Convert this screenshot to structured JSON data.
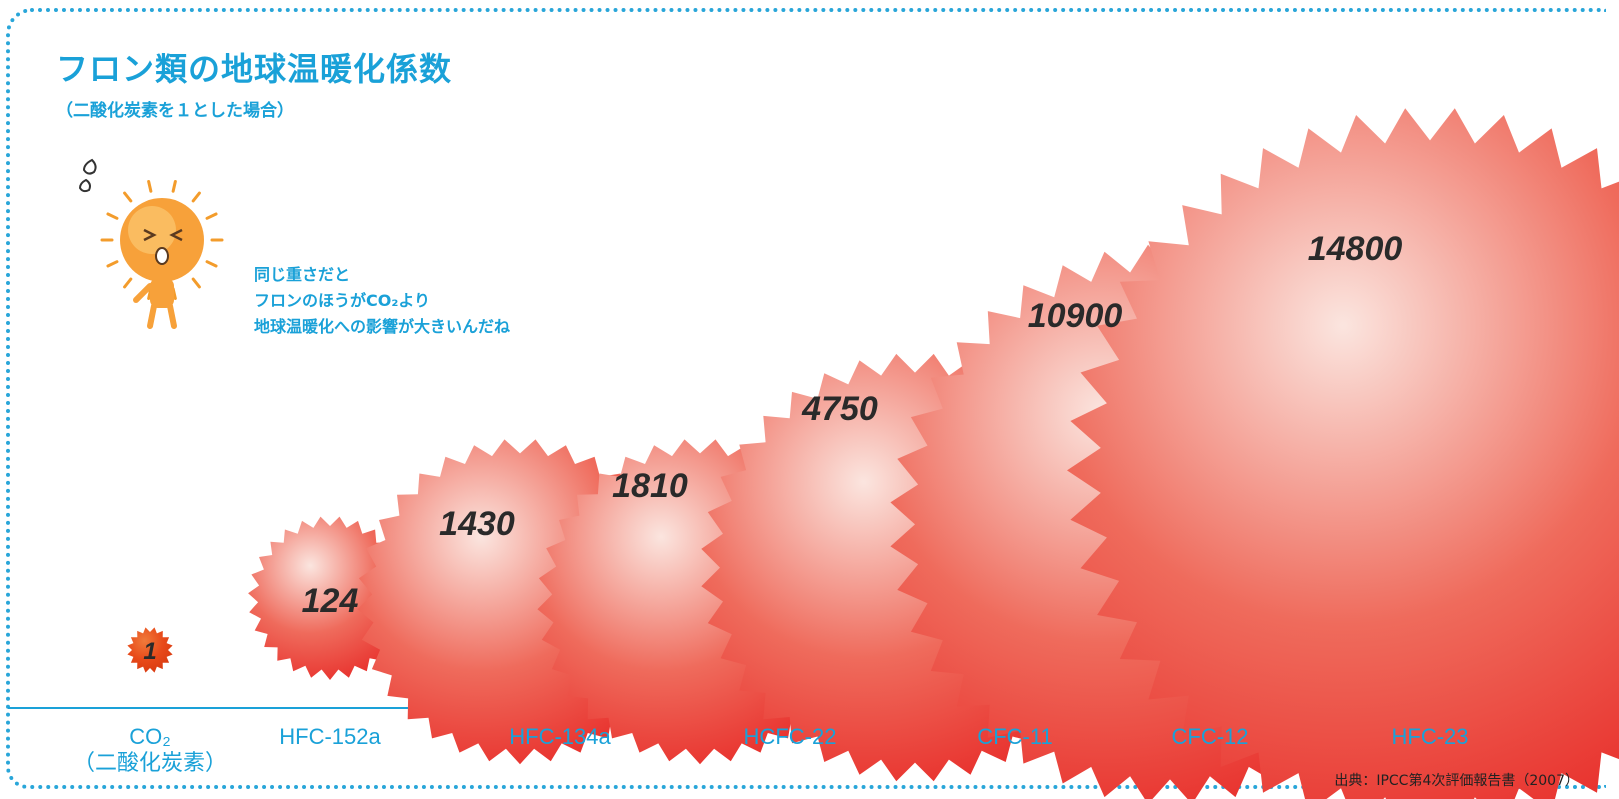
{
  "header": {
    "title": "フロン類の地球温暖化係数",
    "subtitle": "（二酸化炭素を１とした場合）"
  },
  "mascot": {
    "icon": "sun-mascot-icon",
    "speech_lines": [
      "同じ重さだと",
      "フロンのほうがCO₂より",
      "地球温暖化への影響が大きいんだね"
    ]
  },
  "source": "出典：IPCC第4次評価報告書（2007）",
  "colors": {
    "accent": "#1aa1d8",
    "ball": "#e8302c",
    "ball_light": "#fbe5df",
    "co2_ball": "#e84a1a",
    "mascot": "#f7a13a"
  },
  "chart_data": {
    "type": "bar",
    "title": "フロン類の地球温暖化係数",
    "subtitle": "（二酸化炭素を１とした場合）",
    "categories": [
      "CO₂（二酸化炭素）",
      "HFC-152a",
      "HFC-134a",
      "HCFC-22",
      "CFC-11",
      "CFC-12",
      "HFC-23"
    ],
    "category_lines": [
      [
        "CO₂",
        "（二酸化炭素）"
      ],
      [
        "HFC-152a"
      ],
      [
        "HFC-134a"
      ],
      [
        "HCFC-22"
      ],
      [
        "CFC-11"
      ],
      [
        "CFC-12"
      ],
      [
        "HFC-23"
      ]
    ],
    "values": [
      1,
      124,
      1430,
      1810,
      4750,
      10900,
      14800
    ],
    "value_labels": [
      "1",
      "124",
      "1430",
      "1810",
      "4750",
      "10900",
      "14800"
    ],
    "mark": "spiky-ball"
  }
}
